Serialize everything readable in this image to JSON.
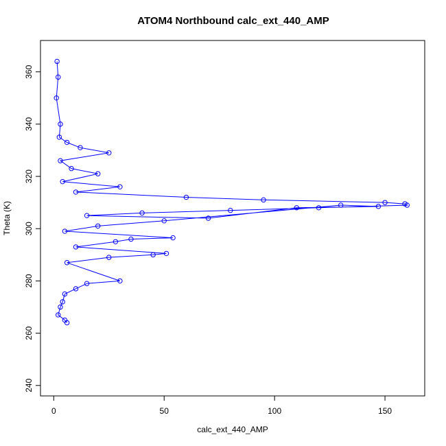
{
  "chart_data": {
    "type": "scatter",
    "title": "ATOM4 Northbound calc_ext_440_AMP",
    "xlabel": "calc_ext_440_AMP",
    "ylabel": "Theta (K)",
    "xlim": [
      -6,
      168
    ],
    "ylim": [
      236,
      372
    ],
    "x_ticks": [
      0,
      50,
      100,
      150
    ],
    "y_ticks": [
      240,
      260,
      280,
      300,
      320,
      340,
      360
    ],
    "grid": false,
    "legend": "none",
    "series_color": "#0000ff",
    "marker": "open-circle",
    "connected": true,
    "series": [
      {
        "x": [
          1.5,
          2.0,
          1.2,
          3.0,
          2.5,
          6.0,
          12.0,
          25.0,
          3.0,
          8.0,
          20.0,
          4.0,
          30.0,
          10.0,
          60.0,
          95.0,
          150.0,
          159.0,
          160.0,
          120.0,
          80.0,
          40.0,
          15.0,
          70.0,
          110.0,
          147.0,
          130.0,
          50.0,
          20.0,
          5.0,
          54.0,
          35.0,
          28.0,
          10.0,
          51.0,
          45.0,
          25.0,
          6.0,
          30.0,
          15.0,
          10.0,
          5.0,
          4.0,
          3.0,
          2.0,
          5.0,
          6.0
        ],
        "y": [
          364.0,
          358.0,
          350.0,
          340.0,
          335.0,
          333.0,
          331.0,
          329.0,
          326.0,
          323.0,
          321.0,
          318.0,
          316.0,
          314.0,
          312.0,
          311.0,
          310.0,
          309.5,
          309.0,
          308.0,
          307.0,
          306.0,
          305.0,
          304.0,
          308.0,
          308.5,
          309.0,
          303.0,
          301.0,
          299.0,
          296.5,
          296.0,
          295.0,
          293.0,
          290.5,
          290.0,
          289.0,
          287.0,
          280.0,
          279.0,
          277.0,
          275.0,
          272.0,
          270.0,
          267.0,
          265.0,
          264.0
        ]
      }
    ]
  }
}
